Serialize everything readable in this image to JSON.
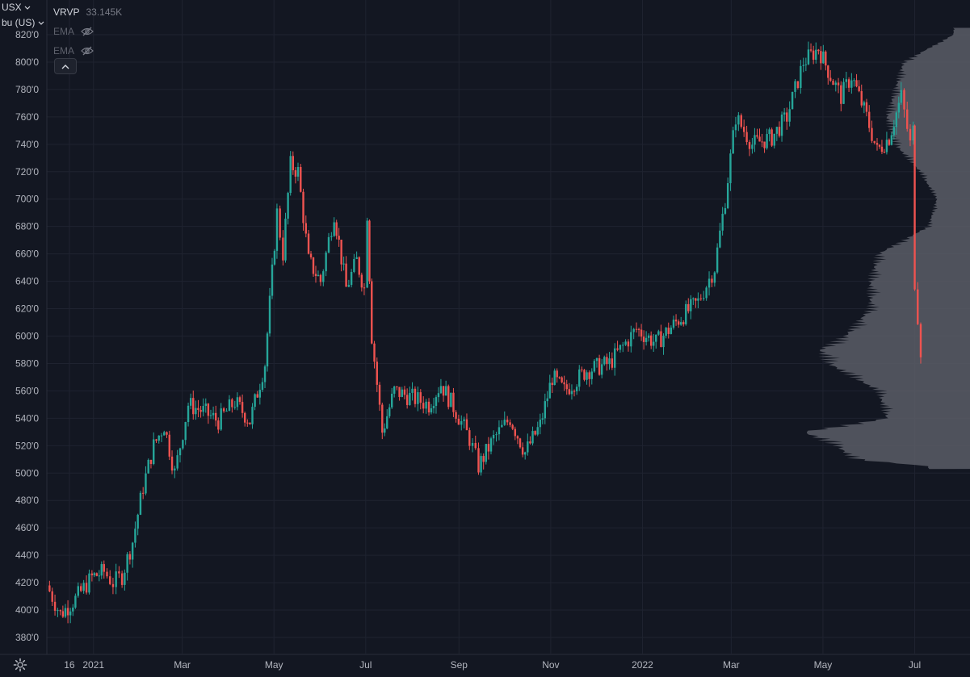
{
  "header": {
    "symbol_label": "USX",
    "unit_label": "bu (US)"
  },
  "legend": {
    "indicator_name": "VRVP",
    "indicator_value": "33.145K",
    "ema1_label": "EMA",
    "ema2_label": "EMA"
  },
  "icons": {
    "eye_hidden": "eye-hidden-icon",
    "collapse": "chevron-up-icon",
    "settings": "gear-icon",
    "dropdown": "chevron-down-icon"
  },
  "colors": {
    "background": "#131722",
    "up": "#26a69a",
    "down": "#ef5350",
    "volume_profile": "#5a5d66",
    "grid": "#1f2330",
    "text": "#b2b5be"
  },
  "chart_data": {
    "type": "candlestick",
    "title": "",
    "xlabel": "",
    "ylabel": "",
    "ylim": [
      370,
      825
    ],
    "grid": true,
    "y_ticks": [
      "820'0",
      "800'0",
      "780'0",
      "760'0",
      "740'0",
      "720'0",
      "700'0",
      "680'0",
      "660'0",
      "640'0",
      "620'0",
      "600'0",
      "580'0",
      "560'0",
      "540'0",
      "520'0",
      "500'0",
      "480'0",
      "460'0",
      "440'0",
      "420'0",
      "400'0",
      "380'0"
    ],
    "x_ticks": [
      "16",
      "2021",
      "Mar",
      "May",
      "Jul",
      "Sep",
      "Nov",
      "2022",
      "Mar",
      "May",
      "Jul"
    ],
    "series": [
      {
        "name": "USX",
        "approx_close_trajectory": [
          {
            "x": "2020-12-01",
            "y": 418
          },
          {
            "x": "2020-12-10",
            "y": 397
          },
          {
            "x": "2020-12-20",
            "y": 408
          },
          {
            "x": "2020-12-31",
            "y": 424
          },
          {
            "x": "2021-01-08",
            "y": 428
          },
          {
            "x": "2021-01-14",
            "y": 420
          },
          {
            "x": "2021-01-20",
            "y": 425
          },
          {
            "x": "2021-01-27",
            "y": 450
          },
          {
            "x": "2021-02-03",
            "y": 490
          },
          {
            "x": "2021-02-10",
            "y": 520
          },
          {
            "x": "2021-02-17",
            "y": 535
          },
          {
            "x": "2021-02-24",
            "y": 500
          },
          {
            "x": "2021-03-05",
            "y": 550
          },
          {
            "x": "2021-03-15",
            "y": 545
          },
          {
            "x": "2021-03-25",
            "y": 538
          },
          {
            "x": "2021-04-05",
            "y": 552
          },
          {
            "x": "2021-04-15",
            "y": 538
          },
          {
            "x": "2021-04-25",
            "y": 580
          },
          {
            "x": "2021-05-03",
            "y": 690
          },
          {
            "x": "2021-05-07",
            "y": 660
          },
          {
            "x": "2021-05-12",
            "y": 725
          },
          {
            "x": "2021-05-17",
            "y": 720
          },
          {
            "x": "2021-05-24",
            "y": 655
          },
          {
            "x": "2021-06-01",
            "y": 640
          },
          {
            "x": "2021-06-10",
            "y": 690
          },
          {
            "x": "2021-06-18",
            "y": 635
          },
          {
            "x": "2021-06-25",
            "y": 655
          },
          {
            "x": "2021-06-30",
            "y": 635
          },
          {
            "x": "2021-07-02",
            "y": 690
          },
          {
            "x": "2021-07-05",
            "y": 600
          },
          {
            "x": "2021-07-12",
            "y": 530
          },
          {
            "x": "2021-07-20",
            "y": 560
          },
          {
            "x": "2021-08-01",
            "y": 555
          },
          {
            "x": "2021-08-12",
            "y": 550
          },
          {
            "x": "2021-08-20",
            "y": 565
          },
          {
            "x": "2021-08-30",
            "y": 545
          },
          {
            "x": "2021-09-08",
            "y": 525
          },
          {
            "x": "2021-09-14",
            "y": 505
          },
          {
            "x": "2021-09-24",
            "y": 525
          },
          {
            "x": "2021-10-05",
            "y": 540
          },
          {
            "x": "2021-10-15",
            "y": 515
          },
          {
            "x": "2021-10-25",
            "y": 535
          },
          {
            "x": "2021-11-02",
            "y": 570
          },
          {
            "x": "2021-11-10",
            "y": 560
          },
          {
            "x": "2021-11-25",
            "y": 575
          },
          {
            "x": "2021-12-10",
            "y": 580
          },
          {
            "x": "2021-12-28",
            "y": 605
          },
          {
            "x": "2022-01-10",
            "y": 595
          },
          {
            "x": "2022-01-25",
            "y": 612
          },
          {
            "x": "2022-02-07",
            "y": 625
          },
          {
            "x": "2022-02-18",
            "y": 650
          },
          {
            "x": "2022-02-25",
            "y": 700
          },
          {
            "x": "2022-03-04",
            "y": 760
          },
          {
            "x": "2022-03-15",
            "y": 740
          },
          {
            "x": "2022-03-28",
            "y": 745
          },
          {
            "x": "2022-04-07",
            "y": 760
          },
          {
            "x": "2022-04-18",
            "y": 800
          },
          {
            "x": "2022-04-28",
            "y": 810
          },
          {
            "x": "2022-05-06",
            "y": 790
          },
          {
            "x": "2022-05-13",
            "y": 775
          },
          {
            "x": "2022-05-20",
            "y": 790
          },
          {
            "x": "2022-05-30",
            "y": 760
          },
          {
            "x": "2022-06-06",
            "y": 735
          },
          {
            "x": "2022-06-14",
            "y": 745
          },
          {
            "x": "2022-06-22",
            "y": 775
          },
          {
            "x": "2022-06-28",
            "y": 740
          },
          {
            "x": "2022-06-30",
            "y": 750
          },
          {
            "x": "2022-07-01",
            "y": 640
          },
          {
            "x": "2022-07-05",
            "y": 590
          }
        ]
      }
    ],
    "volume_profile": {
      "name": "VRVP",
      "value": "33.145K",
      "approx_shape": [
        {
          "price": 820,
          "rel": 0.1
        },
        {
          "price": 800,
          "rel": 0.4
        },
        {
          "price": 780,
          "rel": 0.45
        },
        {
          "price": 760,
          "rel": 0.5
        },
        {
          "price": 740,
          "rel": 0.45
        },
        {
          "price": 720,
          "rel": 0.3
        },
        {
          "price": 700,
          "rel": 0.2
        },
        {
          "price": 680,
          "rel": 0.25
        },
        {
          "price": 660,
          "rel": 0.55
        },
        {
          "price": 640,
          "rel": 0.6
        },
        {
          "price": 620,
          "rel": 0.6
        },
        {
          "price": 600,
          "rel": 0.75
        },
        {
          "price": 590,
          "rel": 0.9
        },
        {
          "price": 580,
          "rel": 0.85
        },
        {
          "price": 560,
          "rel": 0.55
        },
        {
          "price": 540,
          "rel": 0.5
        },
        {
          "price": 530,
          "rel": 1.0
        },
        {
          "price": 520,
          "rel": 0.8
        },
        {
          "price": 510,
          "rel": 0.7
        },
        {
          "price": 505,
          "rel": 0.25
        }
      ]
    }
  }
}
